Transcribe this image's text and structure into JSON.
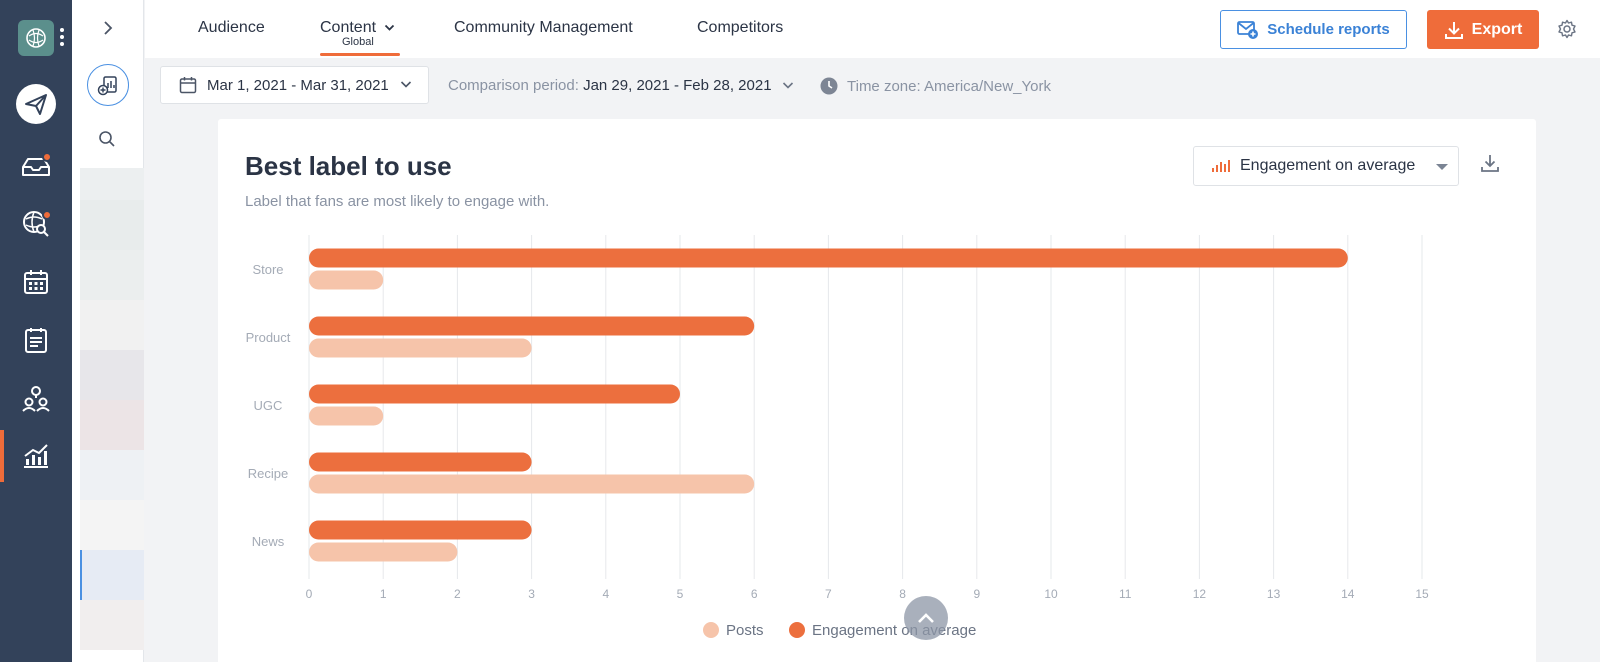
{
  "top_nav": {
    "tabs": [
      {
        "label": "Audience"
      },
      {
        "label": "Content",
        "sublabel": "Global"
      },
      {
        "label": "Community Management"
      },
      {
        "label": "Competitors"
      }
    ],
    "schedule_label": "Schedule reports",
    "export_label": "Export"
  },
  "filters": {
    "date_range": "Mar 1, 2021 - Mar 31, 2021",
    "comparison_prefix": "Comparison period:",
    "comparison_value": "Jan 29, 2021 - Feb 28, 2021",
    "timezone": "Time zone: America/New_York"
  },
  "card": {
    "title": "Best label to use",
    "subtitle": "Label that fans are most likely to engage with.",
    "metric_select": "Engagement on average"
  },
  "colors": {
    "accent": "#ef6c3a",
    "posts": "#f6c4aa",
    "engagement": "#ec6f3e",
    "sidebar": "#33425a",
    "link_blue": "#3b82d6"
  },
  "icons": {
    "rail": [
      "logo-icon",
      "publish-icon",
      "inbox-icon",
      "listening-icon",
      "calendar-icon",
      "planner-icon",
      "people-icon",
      "analytics-icon"
    ]
  },
  "chart_data": {
    "type": "bar",
    "orientation": "horizontal",
    "categories": [
      "Store",
      "Product",
      "UGC",
      "Recipe",
      "News"
    ],
    "series": [
      {
        "name": "Engagement on average",
        "values": [
          14,
          6,
          5,
          3,
          3
        ]
      },
      {
        "name": "Posts",
        "values": [
          1,
          3,
          1,
          6,
          2
        ]
      }
    ],
    "xlim": [
      0,
      15
    ],
    "xticks": [
      0,
      1,
      2,
      3,
      4,
      5,
      6,
      7,
      8,
      9,
      10,
      11,
      12,
      13,
      14,
      15
    ],
    "legend": [
      "Posts",
      "Engagement on average"
    ],
    "legend_position": "bottom",
    "grid": true
  }
}
